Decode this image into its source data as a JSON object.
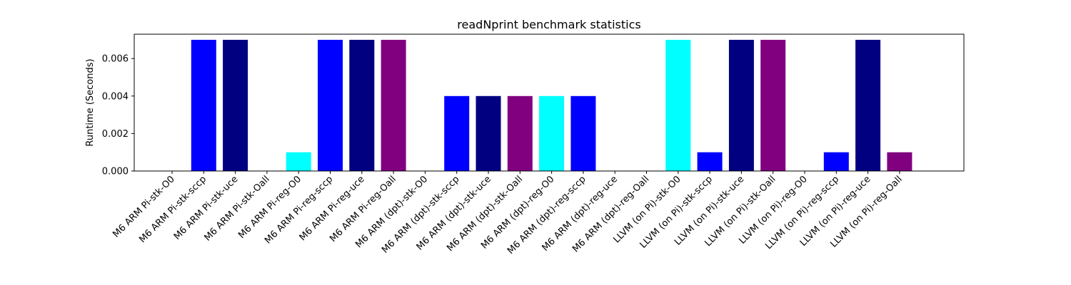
{
  "chart_data": {
    "type": "bar",
    "title": "readNprint benchmark statistics",
    "xlabel": "",
    "ylabel": "Runtime (Seconds)",
    "ylim": [
      0,
      0.0073
    ],
    "yticks": [
      "0.000",
      "0.002",
      "0.004",
      "0.006"
    ],
    "ytick_values": [
      0,
      0.002,
      0.004,
      0.006
    ],
    "grid": false,
    "legend": "none",
    "categories": [
      "M6 ARM Pi-stk-O0",
      "M6 ARM Pi-stk-sccp",
      "M6 ARM Pi-stk-uce",
      "M6 ARM Pi-stk-Oall",
      "M6 ARM Pi-reg-O0",
      "M6 ARM Pi-reg-sccp",
      "M6 ARM Pi-reg-uce",
      "M6 ARM Pi-reg-Oall",
      "M6 ARM (dpt)-stk-O0",
      "M6 ARM (dpt)-stk-sccp",
      "M6 ARM (dpt)-stk-uce",
      "M6 ARM (dpt)-stk-Oall",
      "M6 ARM (dpt)-reg-O0",
      "M6 ARM (dpt)-reg-sccp",
      "M6 ARM (dpt)-reg-uce",
      "M6 ARM (dpt)-reg-Oall",
      "LLVM (on Pi)-stk-O0",
      "LLVM (on Pi)-stk-sccp",
      "LLVM (on Pi)-stk-uce",
      "LLVM (on Pi)-stk-Oall",
      "LLVM (on Pi)-reg-O0",
      "LLVM (on Pi)-reg-sccp",
      "LLVM (on Pi)-reg-uce",
      "LLVM (on Pi)-reg-Oall"
    ],
    "values": [
      0,
      0.007,
      0.007,
      0,
      0.001,
      0.007,
      0.007,
      0.007,
      0,
      0.004,
      0.004,
      0.004,
      0.004,
      0.004,
      0,
      0,
      0.007,
      0.001,
      0.007,
      0.007,
      0,
      0.001,
      0.007,
      0.001
    ],
    "colors": [
      "#00ffff",
      "#0000ff",
      "#000080",
      "#800080",
      "#00ffff",
      "#0000ff",
      "#000080",
      "#800080",
      "#00ffff",
      "#0000ff",
      "#000080",
      "#800080",
      "#00ffff",
      "#0000ff",
      "#000080",
      "#800080",
      "#00ffff",
      "#0000ff",
      "#000080",
      "#800080",
      "#00ffff",
      "#0000ff",
      "#000080",
      "#800080"
    ]
  }
}
